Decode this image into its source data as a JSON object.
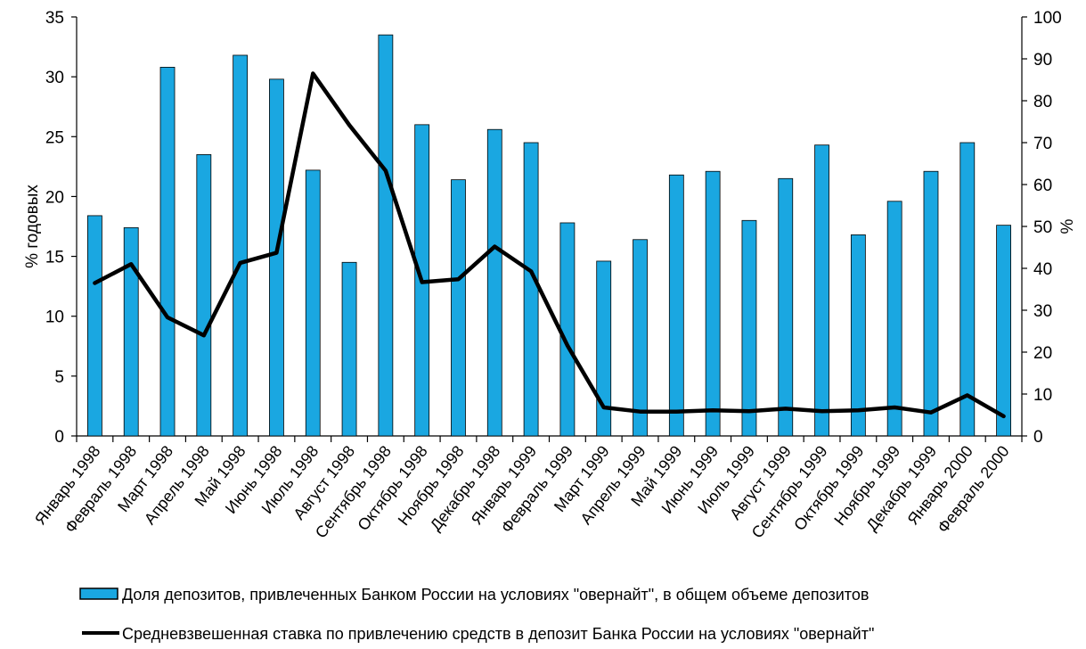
{
  "chart_data": {
    "type": "bar+line",
    "title": "",
    "categories": [
      "Январь 1998",
      "Февраль 1998",
      "Март 1998",
      "Апрель 1998",
      "Май 1998",
      "Июнь 1998",
      "Июль 1998",
      "Август 1998",
      "Сентябрь 1998",
      "Октябрь 1998",
      "Ноябрь 1998",
      "Декабрь 1998",
      "Январь 1999",
      "Февраль 1999",
      "Март 1999",
      "Апрель 1999",
      "Май 1999",
      "Июнь 1999",
      "Июль 1999",
      "Август 1999",
      "Сентябрь 1999",
      "Октябрь 1999",
      "Ноябрь 1999",
      "Декабрь 1999",
      "Январь 2000",
      "Февраль 2000"
    ],
    "y_left": {
      "label": "% годовых",
      "min": 0,
      "max": 35,
      "ticks": [
        0,
        5,
        10,
        15,
        20,
        25,
        30,
        35
      ]
    },
    "y_right": {
      "label": "%",
      "min": 0,
      "max": 100,
      "ticks": [
        0,
        10,
        20,
        30,
        40,
        50,
        60,
        70,
        80,
        90,
        100
      ]
    },
    "series": [
      {
        "name": "Доля депозитов, привлеченных Банком России на условиях \"овернайт\", в общем объеме депозитов",
        "type": "bar",
        "axis": "left",
        "color": "#1aa7e1",
        "values": [
          18.4,
          17.4,
          30.8,
          23.5,
          31.8,
          29.8,
          22.2,
          14.5,
          33.5,
          26.0,
          21.4,
          25.6,
          24.5,
          17.8,
          14.6,
          16.4,
          21.8,
          22.1,
          18.0,
          21.5,
          24.3,
          16.8,
          19.6,
          22.1,
          24.5,
          17.6
        ]
      },
      {
        "name": "Средневзвешенная ставка по привлечению средств в депозит Банка России на условиях \"овернайт\"",
        "type": "line",
        "axis": "right",
        "color": "#000000",
        "values": [
          36.5,
          41.0,
          28.3,
          24.0,
          41.3,
          43.7,
          86.5,
          74.2,
          63.3,
          36.7,
          37.4,
          45.2,
          39.3,
          21.6,
          6.8,
          5.8,
          5.8,
          6.1,
          5.9,
          6.5,
          5.9,
          6.1,
          6.8,
          5.6,
          9.7,
          4.7
        ]
      }
    ],
    "grid": false,
    "legend": "bottom"
  }
}
